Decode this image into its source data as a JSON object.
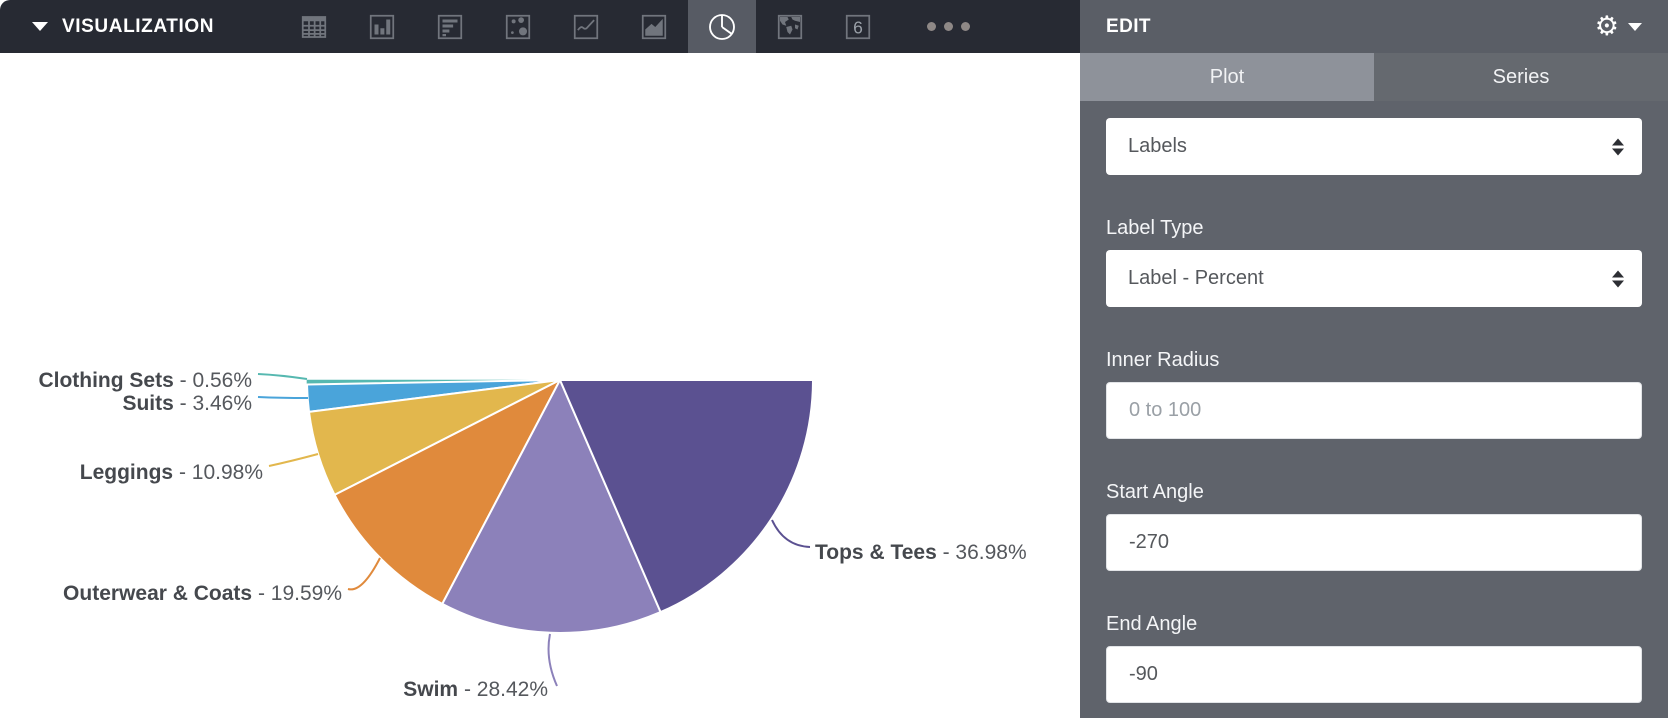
{
  "toolbar": {
    "title": "VISUALIZATION",
    "icons": [
      {
        "name": "table"
      },
      {
        "name": "bar-chart"
      },
      {
        "name": "horizontal-bars"
      },
      {
        "name": "scatter"
      },
      {
        "name": "line-chart"
      },
      {
        "name": "area-chart"
      },
      {
        "name": "pie-chart",
        "selected": true
      },
      {
        "name": "map"
      },
      {
        "name": "kpi-number",
        "glyph": "6"
      },
      {
        "name": "more-options"
      }
    ]
  },
  "edit_panel": {
    "title": "EDIT",
    "tabs": [
      {
        "label": "Plot",
        "active": true
      },
      {
        "label": "Series",
        "active": false
      }
    ],
    "fields": [
      {
        "type": "select",
        "value": "Labels"
      },
      {
        "type": "select",
        "label": "Label Type",
        "value": "Label - Percent"
      },
      {
        "type": "input",
        "label": "Inner Radius",
        "value": "",
        "placeholder": "0 to 100"
      },
      {
        "type": "input",
        "label": "Start Angle",
        "value": "-270"
      },
      {
        "type": "input",
        "label": "End Angle",
        "value": "-90"
      }
    ]
  },
  "chart_data": {
    "type": "pie",
    "title": "",
    "labels": [
      "Clothing Sets",
      "Suits",
      "Leggings",
      "Outerwear & Coats",
      "Swim",
      "Tops & Tees"
    ],
    "values": [
      0.56,
      3.46,
      10.98,
      19.59,
      28.42,
      36.98
    ],
    "unit": "%",
    "colors": [
      "#56b8b0",
      "#4aa4da",
      "#e2b74d",
      "#e08a3c",
      "#8c81ba",
      "#5b5191"
    ],
    "separator": " - ",
    "start_angle": -270,
    "end_angle": -90,
    "shape": "semicircle-bottom",
    "legend_position": "none",
    "label_style": "callout-leader-lines"
  },
  "ui_colors": {
    "toolbar_bg": "#272a33",
    "panel_bg": "#5f636b",
    "panel_header_bg": "#5a5e66",
    "tab_active_bg": "#8e929a",
    "tab_inactive_bg": "#65696f",
    "selected_icon_bg": "#575b64"
  }
}
